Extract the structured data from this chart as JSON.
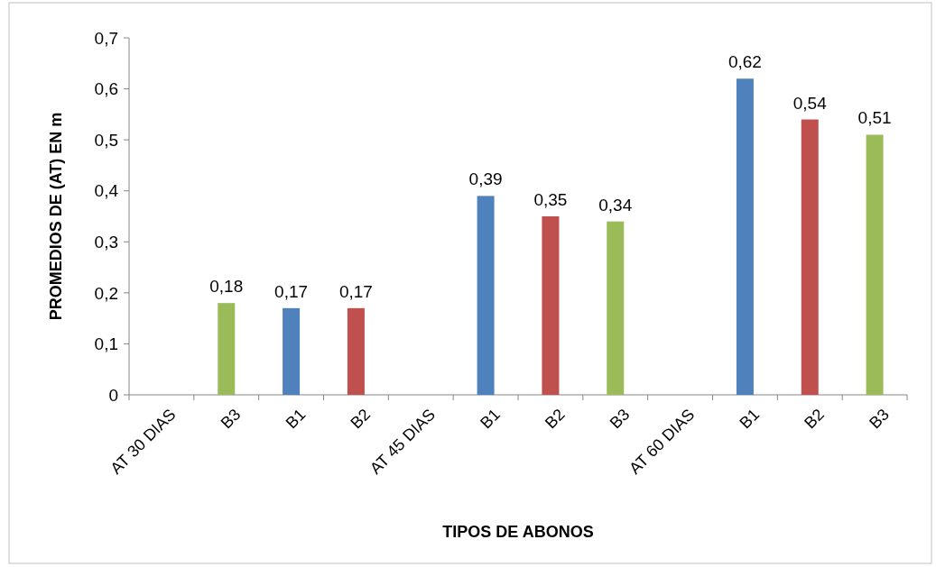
{
  "chart_data": {
    "type": "bar",
    "xlabel": "TIPOS DE ABONOS",
    "ylabel": "PROMEDIOS DE (AT) EN m",
    "categories": [
      "AT 30 DIAS",
      "B3",
      "B1",
      "B2",
      "AT 45 DIAS",
      "B1",
      "B2",
      "B3",
      "AT 60 DIAS",
      "B1",
      "B2",
      "B3"
    ],
    "values": [
      null,
      0.18,
      0.17,
      0.17,
      null,
      0.39,
      0.35,
      0.34,
      null,
      0.62,
      0.54,
      0.51
    ],
    "colors": [
      null,
      "#9bbb59",
      "#4f81bd",
      "#c0504d",
      null,
      "#4f81bd",
      "#c0504d",
      "#9bbb59",
      null,
      "#4f81bd",
      "#c0504d",
      "#9bbb59"
    ],
    "value_labels": [
      null,
      "0,18",
      "0,17",
      "0,17",
      null,
      "0,39",
      "0,35",
      "0,34",
      null,
      "0,62",
      "0,54",
      "0,51"
    ],
    "ylim": [
      0,
      0.7
    ],
    "yticks": [
      0,
      {
        "value": 0.1,
        "label": "0,1"
      },
      {
        "value": 0.2,
        "label": "0,2"
      },
      {
        "value": 0.3,
        "label": "0,3"
      },
      {
        "value": 0.4,
        "label": "0,4"
      },
      {
        "value": 0.5,
        "label": "0,5"
      },
      {
        "value": 0.6,
        "label": "0,6"
      },
      {
        "value": 0.7,
        "label": "0,7"
      }
    ],
    "grid": false
  }
}
